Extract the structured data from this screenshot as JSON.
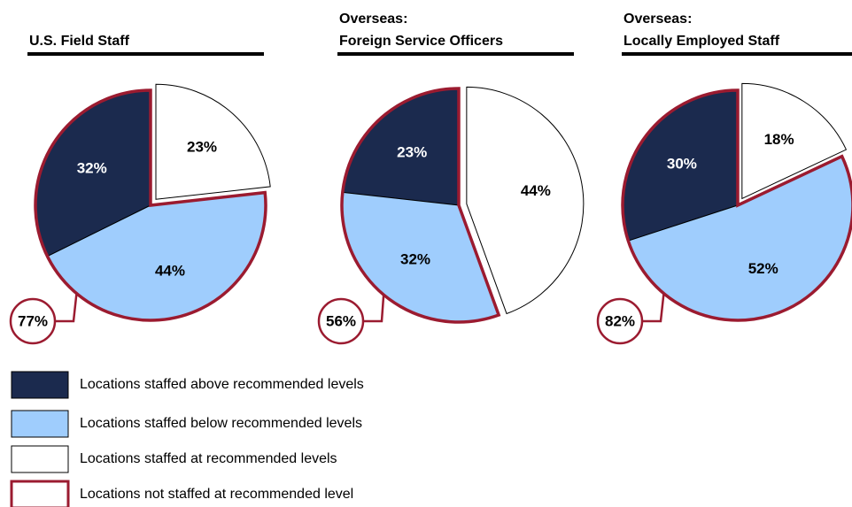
{
  "chart_data": [
    {
      "type": "pie",
      "title": [
        "U.S. Field Staff"
      ],
      "values": [
        32,
        44,
        23
      ],
      "value_labels": [
        "32%",
        "44%",
        "23%"
      ],
      "exploded": 2,
      "callout": {
        "value": 77,
        "label": "77%"
      }
    },
    {
      "type": "pie",
      "title": [
        "Overseas:",
        "Foreign Service Officers"
      ],
      "values": [
        23,
        32,
        44
      ],
      "value_labels": [
        "23%",
        "32%",
        "44%"
      ],
      "exploded": 2,
      "callout": {
        "value": 56,
        "label": "56%"
      }
    },
    {
      "type": "pie",
      "title": [
        "Overseas:",
        "Locally Employed Staff"
      ],
      "values": [
        30,
        52,
        18
      ],
      "value_labels": [
        "30%",
        "52%",
        "18%"
      ],
      "exploded": 2,
      "callout": {
        "value": 82,
        "label": "82%"
      }
    }
  ],
  "legend": [
    {
      "name": "Locations staffed above recommended levels",
      "color": "#1b2a4e"
    },
    {
      "name": "Locations staffed below recommended levels",
      "color": "#9fcdfd"
    },
    {
      "name": "Locations staffed at recommended levels",
      "color": "#ffffff"
    },
    {
      "name": "Locations not staffed at recommended level",
      "outline": "#9b1b30"
    }
  ]
}
